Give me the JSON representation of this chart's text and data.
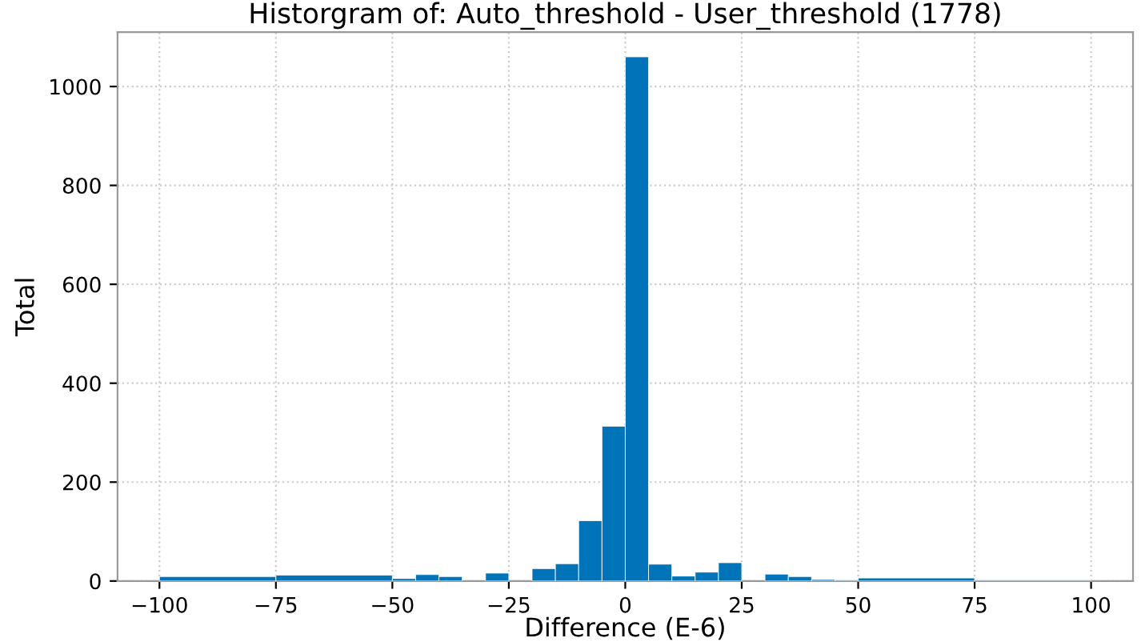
{
  "chart_data": {
    "type": "histogram",
    "title": "Historgram of: Auto_threshold - User_threshold (1778)",
    "xlabel": "Difference (E-6)",
    "ylabel": "Total",
    "bins": [
      -100,
      -75,
      -50,
      -45,
      -40,
      -35,
      -30,
      -25,
      -20,
      -15,
      -10,
      -5,
      0,
      5,
      10,
      15,
      20,
      25,
      30,
      35,
      40,
      45,
      50,
      75,
      100
    ],
    "values": [
      9,
      12,
      5,
      13,
      9,
      0,
      16,
      0,
      25,
      35,
      122,
      313,
      1060,
      34,
      10,
      18,
      37,
      0,
      14,
      9,
      3,
      2,
      6,
      2
    ],
    "color": "#0173b8",
    "xlim": [
      -109,
      109
    ],
    "ylim": [
      0,
      1110
    ],
    "xticks": [
      {
        "value": -100,
        "label": "−100"
      },
      {
        "value": -75,
        "label": "−75"
      },
      {
        "value": -50,
        "label": "−50"
      },
      {
        "value": -25,
        "label": "−25"
      },
      0,
      25,
      50,
      75,
      100
    ],
    "yticks": [
      0,
      200,
      400,
      600,
      800,
      1000
    ],
    "grid": true
  }
}
